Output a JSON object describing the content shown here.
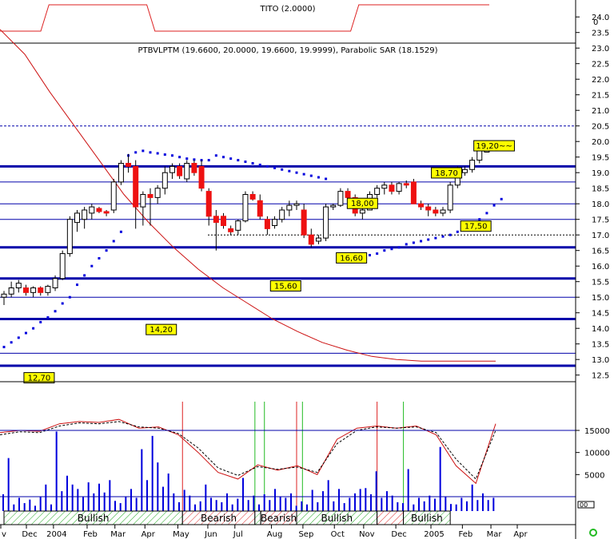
{
  "indicator_panel": {
    "title": "TITO (2.0000)",
    "axis_label": "0",
    "line_color": "#dd2222",
    "levels": [
      0,
      0,
      0,
      0,
      0,
      0,
      1,
      1,
      1,
      1,
      1,
      1,
      1,
      1,
      1,
      1,
      1,
      1,
      1,
      0,
      0,
      0,
      0,
      0,
      0,
      0,
      0,
      0,
      0,
      0,
      0,
      0,
      0,
      0,
      0,
      0,
      0,
      0,
      0,
      0,
      0,
      0,
      0,
      0,
      1,
      1,
      1,
      1,
      1,
      1,
      1,
      1,
      1,
      1,
      1,
      1,
      1,
      1,
      1,
      1,
      1
    ]
  },
  "price_panel": {
    "title": "PTBVLPTM (19.6600, 20.0000, 19.6600, 19.9999), Parabolic SAR (18.1529)"
  },
  "volume_panel": {
    "ylabels": [
      "15000",
      "10000",
      "5000"
    ]
  },
  "chart_data": {
    "type": "candlestick",
    "x_ticks": [
      "v",
      "Dec",
      "2004",
      "Feb",
      "Mar",
      "Apr",
      "May",
      "Jun",
      "Jul",
      "Aug",
      "Sep",
      "Oct",
      "Nov",
      "Dec",
      "2005",
      "Feb",
      "Mar",
      "Apr"
    ],
    "x_tick_idx": [
      0,
      3.5,
      7.2,
      11.8,
      15.6,
      19.7,
      24.2,
      28.3,
      32.0,
      37.0,
      41.3,
      45.6,
      49.6,
      54.0,
      58.8,
      63.1,
      67.0,
      70.6
    ],
    "price_axis": {
      "min": 12.5,
      "max": 24.0,
      "ticks": [
        24.0,
        23.5,
        23.0,
        22.5,
        22.0,
        21.5,
        21.0,
        20.5,
        20.0,
        19.5,
        19.0,
        18.5,
        18.0,
        17.5,
        17.0,
        16.5,
        16.0,
        15.5,
        15.0,
        14.5,
        14.0,
        13.5,
        13.0,
        12.5
      ]
    },
    "candles": [
      {
        "o": 15.0,
        "h": 15.2,
        "l": 14.75,
        "c": 15.1
      },
      {
        "o": 15.1,
        "h": 15.5,
        "l": 15.0,
        "c": 15.3
      },
      {
        "o": 15.3,
        "h": 15.55,
        "l": 15.15,
        "c": 15.45
      },
      {
        "o": 15.3,
        "h": 15.4,
        "l": 15.05,
        "c": 15.15
      },
      {
        "o": 15.15,
        "h": 15.35,
        "l": 15.0,
        "c": 15.3
      },
      {
        "o": 15.3,
        "h": 15.35,
        "l": 15.05,
        "c": 15.15
      },
      {
        "o": 15.15,
        "h": 15.4,
        "l": 15.05,
        "c": 15.35
      },
      {
        "o": 15.3,
        "h": 15.7,
        "l": 15.2,
        "c": 15.6
      },
      {
        "o": 15.6,
        "h": 16.5,
        "l": 15.55,
        "c": 16.4
      },
      {
        "o": 16.4,
        "h": 17.6,
        "l": 16.3,
        "c": 17.5
      },
      {
        "o": 17.4,
        "h": 17.8,
        "l": 17.1,
        "c": 17.7
      },
      {
        "o": 17.5,
        "h": 17.9,
        "l": 17.2,
        "c": 17.8
      },
      {
        "o": 17.7,
        "h": 18.0,
        "l": 17.5,
        "c": 17.9
      },
      {
        "o": 17.85,
        "h": 17.9,
        "l": 17.7,
        "c": 17.75
      },
      {
        "o": 17.75,
        "h": 17.8,
        "l": 17.6,
        "c": 17.7
      },
      {
        "o": 17.8,
        "h": 18.8,
        "l": 17.7,
        "c": 18.7
      },
      {
        "o": 18.7,
        "h": 19.4,
        "l": 18.6,
        "c": 19.3
      },
      {
        "o": 19.3,
        "h": 19.6,
        "l": 19.0,
        "c": 19.2
      },
      {
        "o": 19.2,
        "h": 19.4,
        "l": 17.2,
        "c": 17.9
      },
      {
        "o": 17.9,
        "h": 18.4,
        "l": 17.3,
        "c": 18.3
      },
      {
        "o": 18.3,
        "h": 18.5,
        "l": 17.3,
        "c": 18.2
      },
      {
        "o": 18.2,
        "h": 18.6,
        "l": 18.0,
        "c": 18.5
      },
      {
        "o": 18.5,
        "h": 19.2,
        "l": 18.3,
        "c": 19.0
      },
      {
        "o": 19.0,
        "h": 19.3,
        "l": 18.8,
        "c": 19.2
      },
      {
        "o": 19.2,
        "h": 19.3,
        "l": 18.8,
        "c": 18.9
      },
      {
        "o": 18.8,
        "h": 19.4,
        "l": 18.7,
        "c": 19.3
      },
      {
        "o": 19.3,
        "h": 19.4,
        "l": 18.9,
        "c": 19.0
      },
      {
        "o": 19.2,
        "h": 19.4,
        "l": 18.4,
        "c": 18.5
      },
      {
        "o": 18.4,
        "h": 18.5,
        "l": 17.3,
        "c": 17.6
      },
      {
        "o": 17.6,
        "h": 17.8,
        "l": 16.5,
        "c": 17.4
      },
      {
        "o": 17.6,
        "h": 17.7,
        "l": 17.2,
        "c": 17.3
      },
      {
        "o": 17.2,
        "h": 17.3,
        "l": 17.0,
        "c": 17.1
      },
      {
        "o": 17.15,
        "h": 17.5,
        "l": 17.0,
        "c": 17.45
      },
      {
        "o": 17.45,
        "h": 18.4,
        "l": 17.4,
        "c": 18.3
      },
      {
        "o": 18.3,
        "h": 18.4,
        "l": 18.1,
        "c": 18.15
      },
      {
        "o": 18.1,
        "h": 18.3,
        "l": 17.5,
        "c": 17.6
      },
      {
        "o": 17.5,
        "h": 17.6,
        "l": 17.0,
        "c": 17.2
      },
      {
        "o": 17.3,
        "h": 17.6,
        "l": 17.2,
        "c": 17.5
      },
      {
        "o": 17.5,
        "h": 17.9,
        "l": 17.4,
        "c": 17.8
      },
      {
        "o": 17.8,
        "h": 18.1,
        "l": 17.6,
        "c": 17.95
      },
      {
        "o": 17.95,
        "h": 18.1,
        "l": 17.8,
        "c": 18.0
      },
      {
        "o": 17.8,
        "h": 18.0,
        "l": 16.9,
        "c": 17.0
      },
      {
        "o": 17.0,
        "h": 17.2,
        "l": 16.6,
        "c": 16.7
      },
      {
        "o": 16.8,
        "h": 17.0,
        "l": 16.7,
        "c": 16.9
      },
      {
        "o": 16.9,
        "h": 18.0,
        "l": 16.8,
        "c": 17.9
      },
      {
        "o": 17.9,
        "h": 18.0,
        "l": 17.8,
        "c": 17.95
      },
      {
        "o": 17.95,
        "h": 18.5,
        "l": 17.9,
        "c": 18.4
      },
      {
        "o": 18.4,
        "h": 18.5,
        "l": 18.0,
        "c": 18.2
      },
      {
        "o": 18.2,
        "h": 18.3,
        "l": 17.6,
        "c": 17.7
      },
      {
        "o": 17.7,
        "h": 17.9,
        "l": 17.5,
        "c": 17.8
      },
      {
        "o": 17.8,
        "h": 18.4,
        "l": 17.8,
        "c": 18.3
      },
      {
        "o": 18.3,
        "h": 18.6,
        "l": 18.2,
        "c": 18.5
      },
      {
        "o": 18.5,
        "h": 18.7,
        "l": 18.3,
        "c": 18.6
      },
      {
        "o": 18.6,
        "h": 18.7,
        "l": 18.3,
        "c": 18.4
      },
      {
        "o": 18.4,
        "h": 18.7,
        "l": 18.3,
        "c": 18.65
      },
      {
        "o": 18.65,
        "h": 18.75,
        "l": 18.5,
        "c": 18.6
      },
      {
        "o": 18.7,
        "h": 18.8,
        "l": 18.0,
        "c": 18.0
      },
      {
        "o": 18.0,
        "h": 18.1,
        "l": 17.8,
        "c": 17.9
      },
      {
        "o": 17.9,
        "h": 18.0,
        "l": 17.6,
        "c": 17.8
      },
      {
        "o": 17.8,
        "h": 17.9,
        "l": 17.6,
        "c": 17.7
      },
      {
        "o": 17.7,
        "h": 17.9,
        "l": 17.6,
        "c": 17.8
      },
      {
        "o": 17.8,
        "h": 18.7,
        "l": 17.7,
        "c": 18.6
      },
      {
        "o": 18.6,
        "h": 19.2,
        "l": 18.5,
        "c": 19.1
      },
      {
        "o": 19.0,
        "h": 19.2,
        "l": 18.9,
        "c": 19.1
      },
      {
        "o": 19.1,
        "h": 19.5,
        "l": 19.0,
        "c": 19.4
      },
      {
        "o": 19.4,
        "h": 19.8,
        "l": 19.3,
        "c": 19.7
      },
      {
        "o": 19.66,
        "h": 20.0,
        "l": 19.66,
        "c": 19.9999
      }
    ],
    "sar_up_1": {
      "x": [
        0,
        1,
        2,
        3,
        4,
        5,
        6,
        7,
        8,
        9,
        10,
        11,
        12,
        13,
        14,
        15,
        16
      ],
      "y": [
        13.4,
        13.55,
        13.7,
        13.85,
        14.0,
        14.2,
        14.35,
        14.55,
        14.8,
        15.0,
        15.4,
        15.7,
        16.0,
        16.25,
        16.5,
        16.8,
        17.1
      ]
    },
    "sar_down": {
      "x": [
        17,
        18,
        19,
        20,
        21,
        22,
        23,
        24,
        25,
        26,
        27,
        28
      ],
      "y": [
        19.55,
        19.65,
        19.7,
        19.65,
        19.62,
        19.58,
        19.55,
        19.5,
        19.45,
        19.42,
        19.4,
        19.4
      ]
    },
    "sar_down_2": {
      "x": [
        29,
        30,
        31,
        32,
        33,
        34,
        35,
        36,
        37,
        38,
        39,
        40,
        41,
        42,
        43,
        44
      ],
      "y": [
        19.55,
        19.5,
        19.45,
        19.4,
        19.35,
        19.3,
        19.25,
        19.2,
        19.15,
        19.1,
        19.05,
        19.0,
        18.95,
        18.9,
        18.85,
        18.8
      ]
    },
    "sar_up_2": {
      "x": [
        48,
        49,
        50,
        51,
        52,
        53,
        54,
        55,
        56,
        57,
        58,
        59,
        60,
        61,
        62,
        63,
        64,
        65,
        66,
        67,
        68
      ],
      "y": [
        16.25,
        16.3,
        16.35,
        16.4,
        16.5,
        16.55,
        16.6,
        16.7,
        16.75,
        16.8,
        16.85,
        16.9,
        16.95,
        17.0,
        17.1,
        17.2,
        17.3,
        17.5,
        17.7,
        17.95,
        18.15
      ]
    },
    "moving_average": {
      "x": [
        0,
        5,
        10,
        15,
        20,
        25,
        30,
        35,
        40,
        45,
        50,
        55,
        60,
        65,
        70,
        75,
        80,
        85,
        90,
        95,
        100
      ],
      "y": [
        23.6,
        22.8,
        21.6,
        20.5,
        19.4,
        18.3,
        17.4,
        16.6,
        15.9,
        15.3,
        14.8,
        14.3,
        13.9,
        13.55,
        13.3,
        13.1,
        13.0,
        12.95,
        12.95,
        12.95,
        12.95
      ]
    },
    "annotations": [
      {
        "text": "19,20~~",
        "x": 67,
        "y": 19.85
      },
      {
        "text": "18,70",
        "x": 60.5,
        "y": 18.98
      },
      {
        "text": "18,00",
        "x": 49,
        "y": 18.0
      },
      {
        "text": "17,50",
        "x": 64.5,
        "y": 17.27
      },
      {
        "text": "16,60",
        "x": 47.5,
        "y": 16.25
      },
      {
        "text": "15,60",
        "x": 38.5,
        "y": 15.35
      },
      {
        "text": "14,20",
        "x": 21.5,
        "y": 13.95
      },
      {
        "text": "12,70",
        "x": 4.8,
        "y": 12.4
      }
    ],
    "h_levels_thick": [
      19.2,
      16.6,
      15.6,
      14.3,
      12.8
    ],
    "h_levels_thin": [
      18.7,
      18.0,
      17.5,
      15.0,
      13.2
    ],
    "h_level_dashed": [
      20.5
    ],
    "h_level_dotted": [
      17.0
    ],
    "volume_axis": {
      "min": 0,
      "max": 18500,
      "ticks": [
        15000,
        10000,
        5000
      ]
    },
    "volume": [
      3800,
      12000,
      1500,
      3000,
      1800,
      2600,
      1200,
      3200,
      6000,
      1500,
      18000,
      4500,
      8000,
      6000,
      5000,
      3200,
      6500,
      4000,
      6200,
      4200,
      7000,
      2300,
      1800,
      3200,
      5000,
      3000,
      14000,
      7000,
      17000,
      11000,
      5500,
      8500,
      4000,
      2000,
      4800,
      3500,
      1500,
      2200,
      6000,
      3000,
      2500,
      2000,
      4000,
      1500,
      2800,
      7500,
      2500,
      3500,
      1500,
      3800,
      2500,
      5000,
      3200,
      3000,
      4000,
      1200,
      2200,
      1500,
      4800,
      2000,
      4500,
      7000,
      2200,
      5000,
      1800,
      3000,
      4000,
      5000,
      5200,
      3800,
      9000,
      3000,
      4500,
      3500,
      2000,
      1800,
      9500,
      1500,
      3000,
      2200,
      3500,
      2800,
      14500,
      3200,
      1600,
      1500,
      3000,
      2200,
      6000,
      2500,
      4000,
      2500,
      3000
    ],
    "oscillator_1": {
      "x": [
        0,
        4,
        8,
        12,
        16,
        20,
        24,
        28,
        32,
        36,
        40,
        44,
        48,
        52,
        56,
        60,
        64,
        68,
        72,
        76,
        80,
        84,
        88,
        92,
        96,
        100
      ],
      "y": [
        14500,
        15000,
        14800,
        16500,
        17000,
        16800,
        17500,
        15500,
        15800,
        14000,
        10000,
        5500,
        4000,
        7200,
        6000,
        7000,
        5000,
        13000,
        15500,
        16000,
        15500,
        16000,
        14000,
        7000,
        3000,
        16500
      ]
    },
    "oscillator_2": {
      "x": [
        0,
        4,
        8,
        12,
        16,
        20,
        24,
        28,
        32,
        36,
        40,
        44,
        48,
        52,
        56,
        60,
        64,
        68,
        72,
        76,
        80,
        84,
        88,
        92,
        96,
        100
      ],
      "y": [
        14000,
        14700,
        14500,
        16000,
        16700,
        16500,
        17000,
        15800,
        15500,
        14300,
        11000,
        6500,
        4800,
        6800,
        6200,
        6700,
        5500,
        12000,
        15000,
        15800,
        15500,
        15800,
        14500,
        8500,
        4000,
        15000
      ]
    },
    "signals": [
      {
        "x": 24.4,
        "color": "#dd2222"
      },
      {
        "x": 34.3,
        "color": "#22bb22"
      },
      {
        "x": 35.6,
        "color": "#22bb22"
      },
      {
        "x": 40.0,
        "color": "#dd2222"
      },
      {
        "x": 40.8,
        "color": "#22bb22"
      },
      {
        "x": 51.0,
        "color": "#dd2222"
      },
      {
        "x": 54.6,
        "color": "#22bb22"
      }
    ],
    "bands": [
      {
        "label": "Bullish",
        "from": 0,
        "to": 24.4,
        "state": "bullish"
      },
      {
        "label": "Bearish",
        "from": 24.4,
        "to": 34.3,
        "state": "bearish"
      },
      {
        "label": "",
        "from": 34.3,
        "to": 35.1,
        "state": "bullish"
      },
      {
        "label": "Bearish",
        "from": 35.1,
        "to": 40.0,
        "state": "bearish"
      },
      {
        "label": "Bullish",
        "from": 40.0,
        "to": 51.0,
        "state": "bullish"
      },
      {
        "label": "",
        "from": 51.0,
        "to": 54.6,
        "state": "bearish"
      },
      {
        "label": "Bullish",
        "from": 54.6,
        "to": 61.0,
        "state": "bullish"
      }
    ],
    "colors": {
      "up_candle": "#ffffff",
      "down_candle": "#ee1111",
      "sar": "#0000dd",
      "ma": "#cc1111",
      "level": "#0000aa",
      "volume": "#0000dd",
      "annotation_fill": "#ffff00"
    },
    "volume_box_label": "00"
  }
}
